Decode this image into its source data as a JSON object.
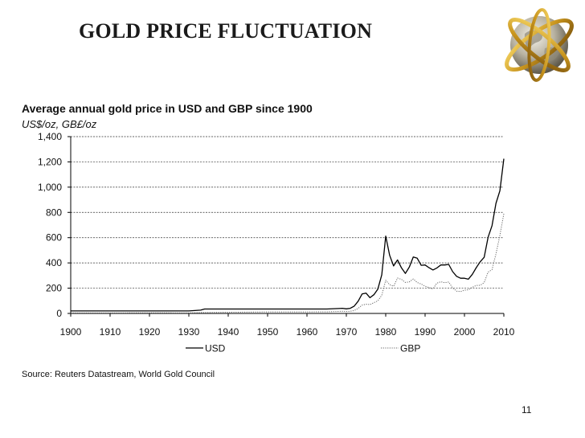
{
  "slide": {
    "title": "GOLD PRICE FLUCTUATION",
    "page_number": "11"
  },
  "chart_data": {
    "type": "line",
    "title": "Average annual gold price in USD and GBP since 1900",
    "units": "US$/oz, GB£/oz",
    "source": "Source: Reuters Datastream, World Gold Council",
    "xlim": [
      1900,
      2010
    ],
    "ylim": [
      0,
      1400
    ],
    "x_ticks": [
      1900,
      1910,
      1920,
      1930,
      1940,
      1950,
      1960,
      1970,
      1980,
      1990,
      2000,
      2010
    ],
    "y_ticks": [
      0,
      200,
      400,
      600,
      800,
      1000,
      1200,
      1400
    ],
    "y_tick_labels": [
      "0",
      "200",
      "400",
      "600",
      "800",
      "1,000",
      "1,200",
      "1,400"
    ],
    "grid": "horizontal",
    "legend_position": "bottom",
    "series": [
      {
        "name": "USD",
        "style": "solid",
        "color": "#000000",
        "points": [
          [
            1900,
            20
          ],
          [
            1910,
            20
          ],
          [
            1920,
            20
          ],
          [
            1930,
            20
          ],
          [
            1933,
            26
          ],
          [
            1934,
            35
          ],
          [
            1940,
            35
          ],
          [
            1950,
            35
          ],
          [
            1960,
            35
          ],
          [
            1965,
            35
          ],
          [
            1968,
            39
          ],
          [
            1969,
            41
          ],
          [
            1970,
            36
          ],
          [
            1971,
            41
          ],
          [
            1972,
            58
          ],
          [
            1973,
            97
          ],
          [
            1974,
            154
          ],
          [
            1975,
            161
          ],
          [
            1976,
            125
          ],
          [
            1977,
            148
          ],
          [
            1978,
            193
          ],
          [
            1979,
            306
          ],
          [
            1980,
            612
          ],
          [
            1981,
            460
          ],
          [
            1982,
            376
          ],
          [
            1983,
            424
          ],
          [
            1984,
            361
          ],
          [
            1985,
            317
          ],
          [
            1986,
            368
          ],
          [
            1987,
            447
          ],
          [
            1988,
            437
          ],
          [
            1989,
            381
          ],
          [
            1990,
            384
          ],
          [
            1991,
            362
          ],
          [
            1992,
            344
          ],
          [
            1993,
            360
          ],
          [
            1994,
            384
          ],
          [
            1995,
            384
          ],
          [
            1996,
            388
          ],
          [
            1997,
            331
          ],
          [
            1998,
            294
          ],
          [
            1999,
            279
          ],
          [
            2000,
            279
          ],
          [
            2001,
            271
          ],
          [
            2002,
            310
          ],
          [
            2003,
            363
          ],
          [
            2004,
            409
          ],
          [
            2005,
            444
          ],
          [
            2006,
            603
          ],
          [
            2007,
            695
          ],
          [
            2008,
            872
          ],
          [
            2009,
            972
          ],
          [
            2010,
            1225
          ]
        ]
      },
      {
        "name": "GBP",
        "style": "dotted",
        "color": "#666666",
        "points": [
          [
            1900,
            4
          ],
          [
            1910,
            4
          ],
          [
            1920,
            5
          ],
          [
            1930,
            4
          ],
          [
            1933,
            7
          ],
          [
            1934,
            7
          ],
          [
            1940,
            9
          ],
          [
            1950,
            12
          ],
          [
            1960,
            12
          ],
          [
            1965,
            13
          ],
          [
            1968,
            16
          ],
          [
            1969,
            17
          ],
          [
            1970,
            15
          ],
          [
            1971,
            17
          ],
          [
            1972,
            23
          ],
          [
            1973,
            40
          ],
          [
            1974,
            66
          ],
          [
            1975,
            73
          ],
          [
            1976,
            70
          ],
          [
            1977,
            85
          ],
          [
            1978,
            100
          ],
          [
            1979,
            144
          ],
          [
            1980,
            263
          ],
          [
            1981,
            227
          ],
          [
            1982,
            215
          ],
          [
            1983,
            280
          ],
          [
            1984,
            270
          ],
          [
            1985,
            245
          ],
          [
            1986,
            250
          ],
          [
            1987,
            273
          ],
          [
            1988,
            245
          ],
          [
            1989,
            233
          ],
          [
            1990,
            216
          ],
          [
            1991,
            205
          ],
          [
            1992,
            195
          ],
          [
            1993,
            240
          ],
          [
            1994,
            251
          ],
          [
            1995,
            244
          ],
          [
            1996,
            249
          ],
          [
            1997,
            202
          ],
          [
            1998,
            177
          ],
          [
            1999,
            173
          ],
          [
            2000,
            184
          ],
          [
            2001,
            188
          ],
          [
            2002,
            207
          ],
          [
            2003,
            222
          ],
          [
            2004,
            223
          ],
          [
            2005,
            244
          ],
          [
            2006,
            327
          ],
          [
            2007,
            347
          ],
          [
            2008,
            471
          ],
          [
            2009,
            619
          ],
          [
            2010,
            790
          ]
        ]
      }
    ]
  }
}
